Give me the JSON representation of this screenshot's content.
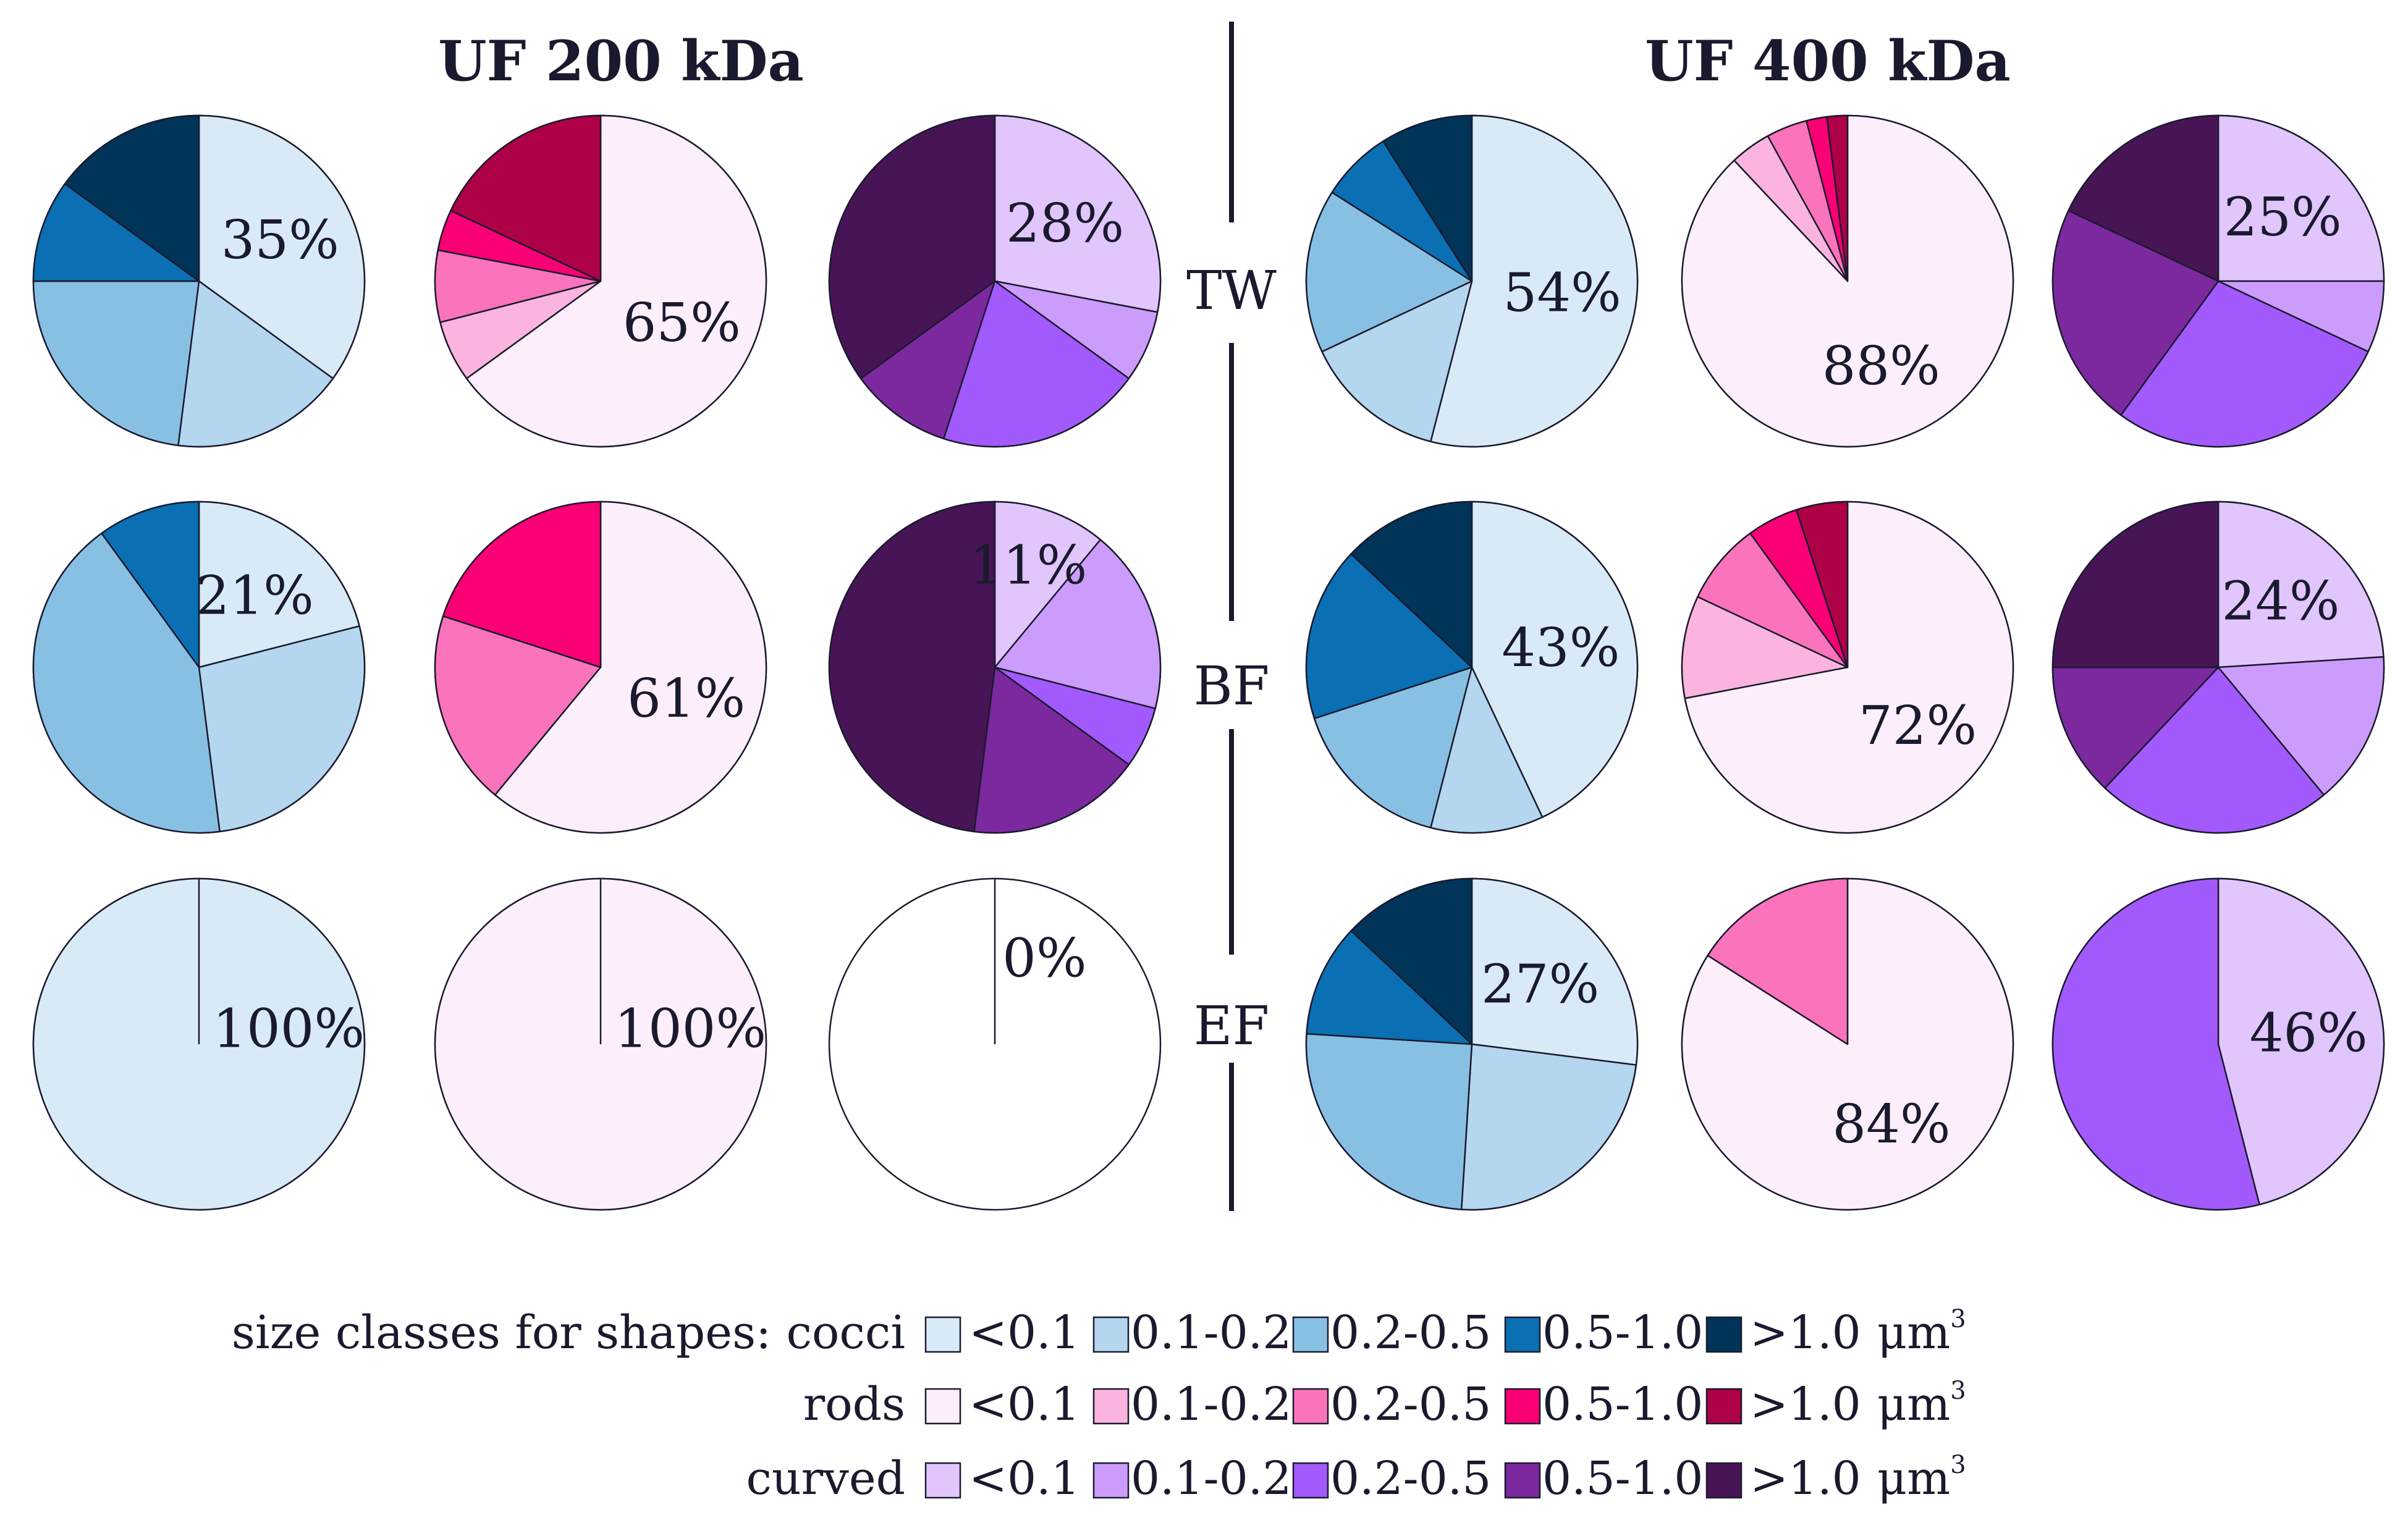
{
  "chart_data": {
    "type": "pie",
    "title_left": "UF 200 kDa",
    "title_right": "UF 400 kDa",
    "row_labels": [
      "TW",
      "BF",
      "EF"
    ],
    "colors": {
      "cocci": [
        "#d9eaf7",
        "#b4d6ef",
        "#88c0e3",
        "#0a6fb3",
        "#003458"
      ],
      "rods": [
        "#fdeefc",
        "#fbb4dd",
        "#fb73bb",
        "#f90074",
        "#ad0047"
      ],
      "curved": [
        "#e1c6fd",
        "#cc9cfd",
        "#a35afc",
        "#7c29a0",
        "#471555"
      ],
      "empty": "#ffffff",
      "stroke": "#1a1a2e"
    },
    "pies": [
      {
        "name": "uf200-tw-cocci",
        "group": "cocci",
        "label": "35%",
        "slices": [
          35,
          17,
          23,
          10,
          15
        ]
      },
      {
        "name": "uf200-tw-rods",
        "group": "rods",
        "label": "65%",
        "slices": [
          65,
          6,
          7,
          4,
          18
        ]
      },
      {
        "name": "uf200-tw-curved",
        "group": "curved",
        "label": "28%",
        "slices": [
          28,
          7,
          20,
          10,
          35
        ]
      },
      {
        "name": "uf400-tw-cocci",
        "group": "cocci",
        "label": "54%",
        "slices": [
          54,
          14,
          16,
          7,
          9
        ]
      },
      {
        "name": "uf400-tw-rods",
        "group": "rods",
        "label": "88%",
        "slices": [
          88,
          4,
          4,
          2,
          2
        ]
      },
      {
        "name": "uf200-bf-cocci",
        "group": "cocci",
        "label": "21%",
        "slices": [
          21,
          27,
          42,
          10,
          0
        ]
      },
      {
        "name": "uf200-bf-rods",
        "group": "rods",
        "label": "61%",
        "slices": [
          61,
          0,
          19,
          20,
          0
        ]
      },
      {
        "name": "uf200-bf-curved",
        "group": "curved",
        "label": "11%",
        "slices": [
          11,
          18,
          6,
          17,
          48
        ]
      },
      {
        "name": "uf400-tw-curved",
        "group": "curved",
        "label": "25%",
        "slices": [
          25,
          7,
          28,
          22,
          18
        ]
      },
      {
        "name": "uf400-bf-cocci",
        "group": "cocci",
        "label": "43%",
        "slices": [
          43,
          11,
          16,
          17,
          13
        ]
      },
      {
        "name": "uf400-bf-rods",
        "group": "rods",
        "label": "72%",
        "slices": [
          72,
          10,
          8,
          5,
          5
        ]
      },
      {
        "name": "uf400-bf-curved",
        "group": "curved",
        "label": "24%",
        "slices": [
          24,
          15,
          23,
          13,
          25
        ]
      },
      {
        "name": "uf200-ef-cocci",
        "group": "cocci",
        "label": "100%",
        "slices": [
          100,
          0,
          0,
          0,
          0
        ]
      },
      {
        "name": "uf200-ef-rods",
        "group": "rods",
        "label": "100%",
        "slices": [
          100,
          0,
          0,
          0,
          0
        ]
      },
      {
        "name": "uf200-ef-curved",
        "group": "curved",
        "label": "0%",
        "slices": [
          0,
          0,
          0,
          0,
          0
        ]
      },
      {
        "name": "uf400-ef-cocci",
        "group": "cocci",
        "label": "27%",
        "slices": [
          27,
          24,
          25,
          11,
          13
        ]
      },
      {
        "name": "uf400-ef-rods",
        "group": "rods",
        "label": "84%",
        "slices": [
          84,
          0,
          16,
          0,
          0
        ]
      },
      {
        "name": "uf400-ef-curved",
        "group": "curved",
        "label": "46%",
        "slices": [
          46,
          0,
          54,
          0,
          0
        ]
      }
    ],
    "legend": {
      "title": "size classes for shapes:",
      "unit": "μm",
      "unit_exp": "3",
      "rows": [
        {
          "shape": "cocci",
          "classes": [
            "<0.1",
            "0.1-0.2",
            "0.2-0.5",
            "0.5-1.0",
            ">1.0"
          ]
        },
        {
          "shape": "rods",
          "classes": [
            "<0.1",
            "0.1-0.2",
            "0.2-0.5",
            "0.5-1.0",
            ">1.0"
          ]
        },
        {
          "shape": "curved",
          "classes": [
            "<0.1",
            "0.1-0.2",
            "0.2-0.5",
            "0.5-1.0",
            ">1.0"
          ]
        }
      ]
    }
  }
}
